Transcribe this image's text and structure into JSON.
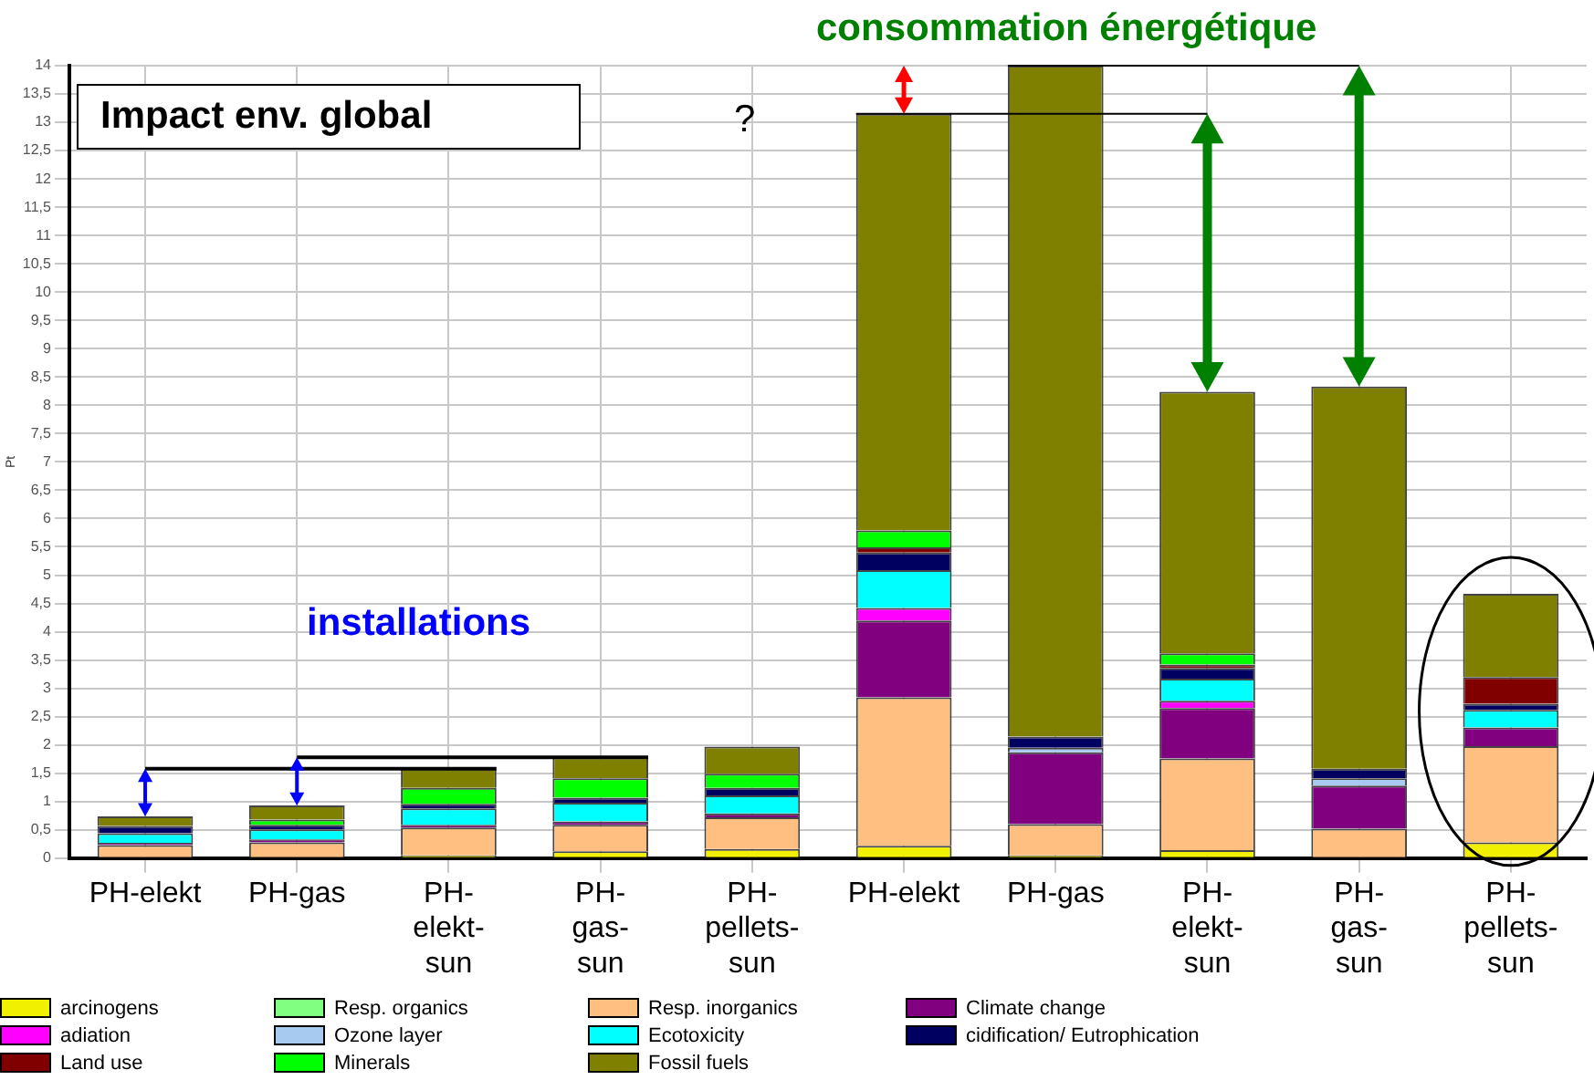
{
  "chart_data": {
    "type": "bar",
    "stacked": true,
    "title": "Impact env. global",
    "ylabel": "Pt",
    "annotations": [
      "consommation énergétique",
      "installations",
      "?"
    ],
    "categories": [
      "PH-elekt",
      "PH-gas",
      "PH-elekt-sun",
      "PH-gas-sun",
      "PH-pellets-sun",
      "PH-elekt",
      "PH-gas",
      "PH-elekt-sun",
      "PH-gas-sun",
      "PH-pellets-sun"
    ],
    "series": [
      {
        "name": "arcinogens",
        "color": "#f0f000",
        "values": [
          null,
          null,
          0.05,
          0.12,
          0.16,
          0.22,
          0.05,
          0.14,
          0,
          0.28
        ]
      },
      {
        "name": "Resp. organics",
        "color": "#80ff80",
        "values": [
          0,
          0,
          0,
          0,
          0,
          0,
          0,
          0,
          0,
          0
        ]
      },
      {
        "name": "Resp. inorganics",
        "color": "#ffbf80",
        "values": [
          0.23,
          0.28,
          0.49,
          0.47,
          0.56,
          2.62,
          0.55,
          1.62,
          0.52,
          1.7
        ]
      },
      {
        "name": "Climate change",
        "color": "#800080",
        "values": [
          0.04,
          0.05,
          0.05,
          0.06,
          0.07,
          1.36,
          1.27,
          0.89,
          0.76,
          0.33
        ]
      },
      {
        "name": "adiation",
        "color": "#ff00ff",
        "values": [
          0,
          0,
          0,
          0,
          0,
          0.22,
          0,
          0.13,
          0,
          0
        ]
      },
      {
        "name": "Ozone layer",
        "color": "#a6caf0",
        "values": [
          0,
          0,
          0,
          0,
          0,
          0,
          0.08,
          0,
          0.13,
          0
        ]
      },
      {
        "name": "Ecotoxicity",
        "color": "#00ffff",
        "values": [
          0.17,
          0.18,
          0.29,
          0.33,
          0.32,
          0.67,
          0,
          0.39,
          0,
          0.31
        ]
      },
      {
        "name": "cidification/ Eutrophication",
        "color": "#000060",
        "values": [
          0.13,
          0.08,
          0.08,
          0.09,
          0.13,
          0.31,
          0.2,
          0.19,
          0.17,
          0.11
        ]
      },
      {
        "name": "Land use",
        "color": "#800000",
        "values": [
          0,
          0,
          0,
          0,
          0,
          0.09,
          0,
          0.06,
          0,
          0.47
        ]
      },
      {
        "name": "Minerals",
        "color": "#00ff00",
        "values": [
          0,
          0.09,
          0.28,
          0.34,
          0.25,
          0.3,
          0,
          0.2,
          0,
          0
        ]
      },
      {
        "name": "Fossil fuels",
        "color": "#808000",
        "values": [
          0.17,
          0.25,
          0.34,
          0.37,
          0.48,
          7.36,
          11.85,
          4.62,
          6.75,
          1.47
        ]
      }
    ],
    "ylim": [
      0,
      14
    ],
    "yticks": [
      0,
      {
        "value": 0.5,
        "label": "0,5"
      },
      1,
      {
        "value": 1.5,
        "label": "1,5"
      },
      2,
      {
        "value": 2.5,
        "label": "2,5"
      },
      3,
      {
        "value": 3.5,
        "label": "3,5"
      },
      4,
      {
        "value": 4.5,
        "label": "4,5"
      },
      5,
      {
        "value": 5.5,
        "label": "5,5"
      },
      6,
      {
        "value": 6.5,
        "label": "6,5"
      },
      7,
      {
        "value": 7.5,
        "label": "7,5"
      },
      8,
      {
        "value": 8.5,
        "label": "8,5"
      },
      9,
      {
        "value": 9.5,
        "label": "9,5"
      },
      10,
      {
        "value": 10.5,
        "label": "10,5"
      },
      11,
      {
        "value": 11.5,
        "label": "11,5"
      },
      12,
      {
        "value": 12.5,
        "label": "12,5"
      },
      13,
      {
        "value": 13.5,
        "label": "13,5"
      },
      14
    ],
    "grid": true,
    "legend": "bottom"
  }
}
